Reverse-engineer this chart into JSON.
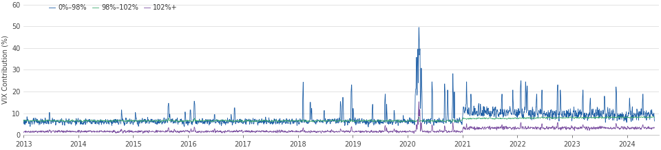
{
  "ylabel": "VIX Contribution (%)",
  "ylim": [
    0,
    60
  ],
  "yticks": [
    0,
    10,
    20,
    30,
    40,
    50,
    60
  ],
  "legend": [
    "0%–98%",
    "98%–102%",
    "102%+"
  ],
  "colors": [
    "#1f5fa6",
    "#3daa6e",
    "#7b4fa0"
  ],
  "linewidth": 0.6,
  "background_color": "#ffffff",
  "grid_color": "#d8d8d8"
}
